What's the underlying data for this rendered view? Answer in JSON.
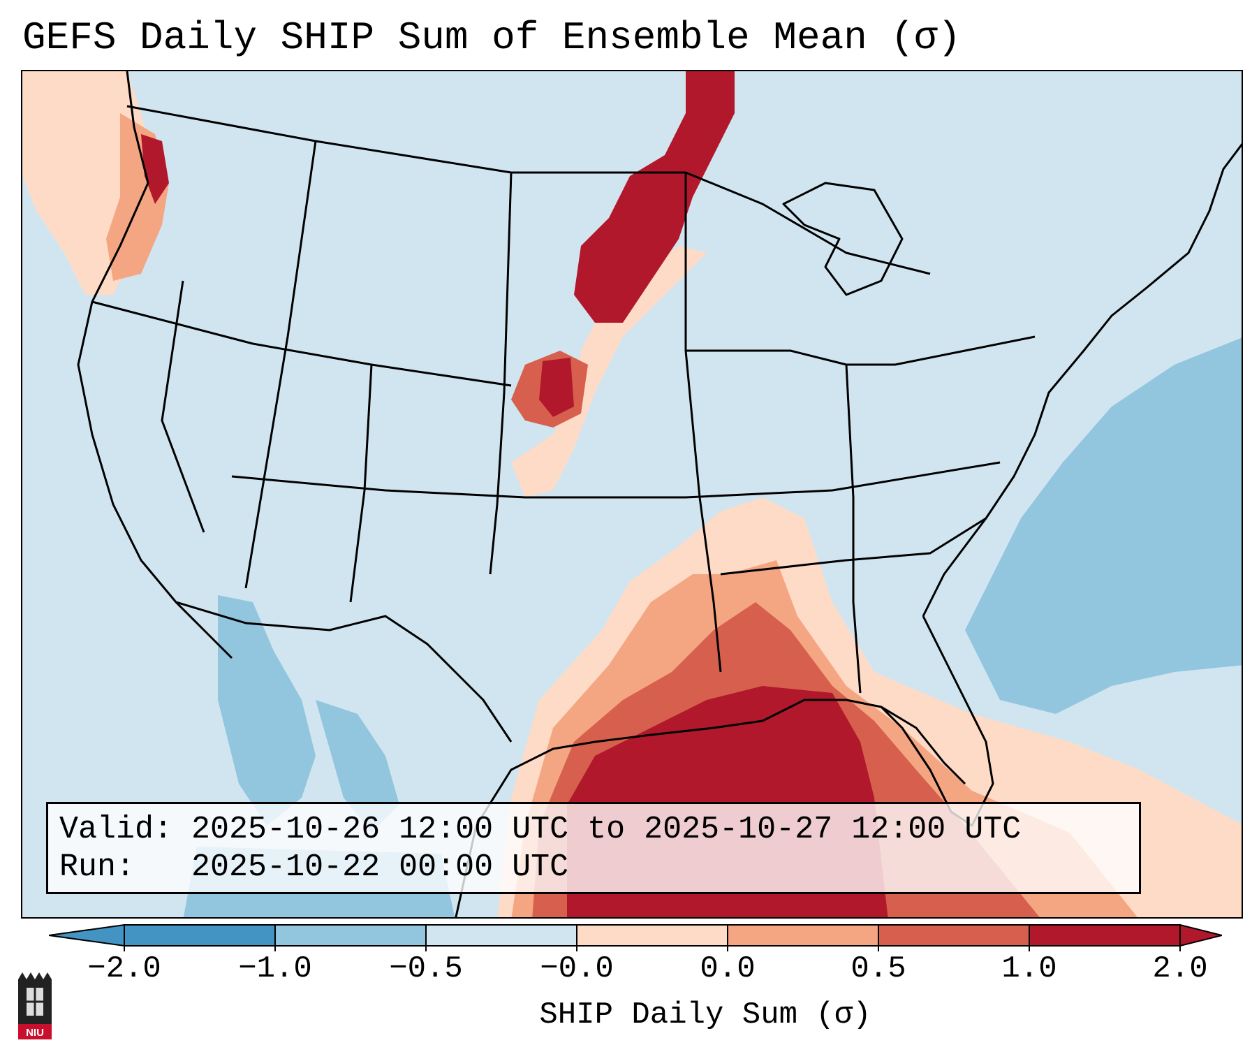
{
  "title": "GEFS Daily SHIP Sum of Ensemble Mean (σ)",
  "info": {
    "valid_label": "Valid:",
    "valid_value": "2025-10-26 12:00 UTC to 2025-10-27 12:00 UTC",
    "run_label": "Run:",
    "run_value": "2025-10-22 00:00 UTC"
  },
  "colorbar": {
    "label": "SHIP Daily Sum (σ)",
    "ticks": [
      "−2.0",
      "−1.0",
      "−0.5",
      "−0.0",
      "0.0",
      "0.5",
      "1.0",
      "2.0"
    ],
    "colors": [
      "#4393c3",
      "#92c5de",
      "#d1e5f0",
      "#ffffff",
      "#fddbc7",
      "#f4a582",
      "#d6604d",
      "#b2182b"
    ],
    "extend": "both"
  },
  "map": {
    "region": "Contiguous United States",
    "background_color": "#d1e5f0"
  },
  "logo": {
    "text": "NIU",
    "color": "#c8102e"
  }
}
